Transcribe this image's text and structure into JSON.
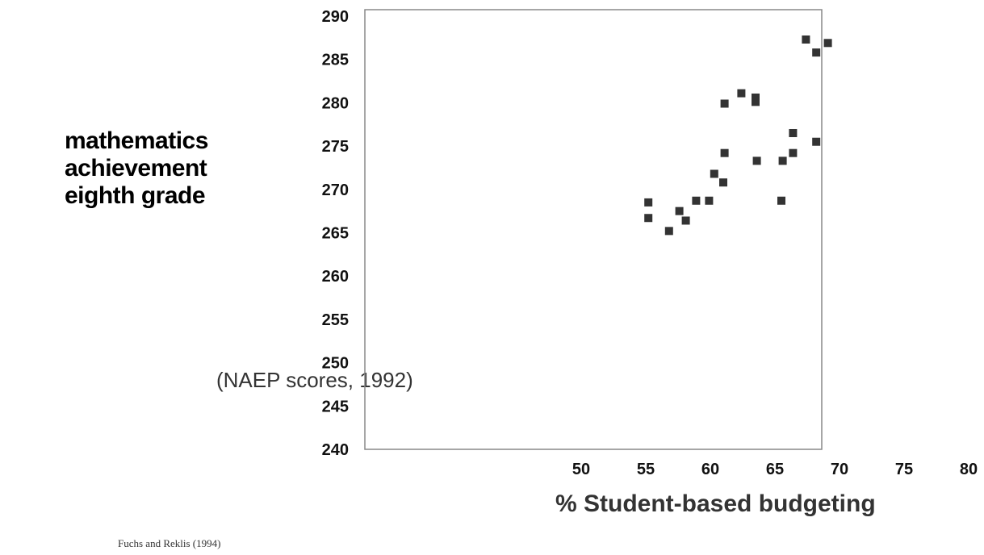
{
  "chart_data": {
    "type": "scatter",
    "ylabel_lines": [
      "mathematics",
      "achievement",
      "eighth grade"
    ],
    "subtitle": "(NAEP scores, 1992)",
    "xlabel": "% Student-based budgeting",
    "source": "Fuchs and Reklis (1994)",
    "xlim": [
      50,
      80
    ],
    "ylim": [
      240,
      290
    ],
    "x_ticks": [
      50,
      55,
      60,
      65,
      70,
      75,
      80
    ],
    "y_ticks": [
      240,
      245,
      250,
      255,
      260,
      265,
      270,
      275,
      280,
      285,
      290
    ],
    "marker_color": "#333333",
    "points": [
      {
        "x": 55.2,
        "y": 268.5
      },
      {
        "x": 55.2,
        "y": 266.7
      },
      {
        "x": 56.8,
        "y": 265.2
      },
      {
        "x": 57.6,
        "y": 267.5
      },
      {
        "x": 58.1,
        "y": 266.4
      },
      {
        "x": 58.9,
        "y": 268.7
      },
      {
        "x": 59.9,
        "y": 268.7
      },
      {
        "x": 60.3,
        "y": 271.8
      },
      {
        "x": 61.0,
        "y": 270.8
      },
      {
        "x": 61.1,
        "y": 274.2
      },
      {
        "x": 61.1,
        "y": 279.9
      },
      {
        "x": 62.4,
        "y": 281.1
      },
      {
        "x": 63.5,
        "y": 280.6
      },
      {
        "x": 63.5,
        "y": 280.1
      },
      {
        "x": 63.6,
        "y": 273.3
      },
      {
        "x": 65.6,
        "y": 273.3
      },
      {
        "x": 65.5,
        "y": 268.7
      },
      {
        "x": 66.4,
        "y": 276.5
      },
      {
        "x": 66.4,
        "y": 274.2
      },
      {
        "x": 67.4,
        "y": 287.3
      },
      {
        "x": 68.2,
        "y": 285.8
      },
      {
        "x": 68.2,
        "y": 275.5
      },
      {
        "x": 69.1,
        "y": 286.9
      }
    ]
  }
}
